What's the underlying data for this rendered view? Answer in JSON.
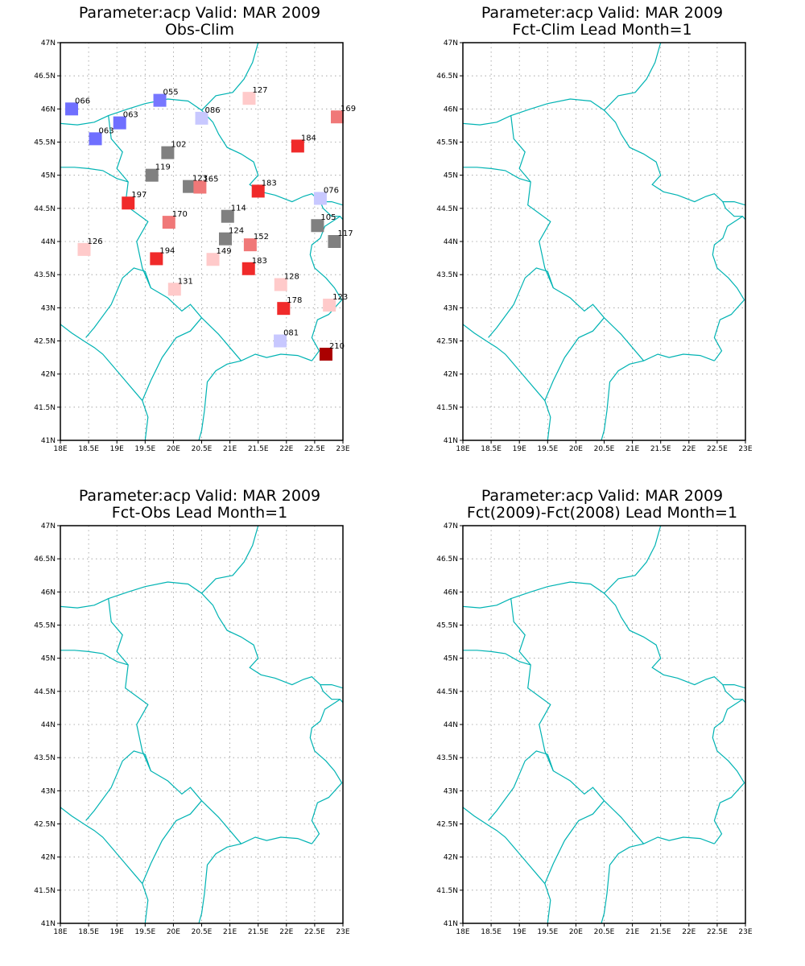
{
  "panels": [
    {
      "title1": "Parameter:acp Valid: MAR 2009",
      "title2": "Obs-Clim",
      "stations": [
        {
          "lon": 18.2,
          "lat": 46.0,
          "label": "066",
          "color": "#6f6fff"
        },
        {
          "lon": 19.76,
          "lat": 46.13,
          "label": "055",
          "color": "#7777ff"
        },
        {
          "lon": 20.5,
          "lat": 45.86,
          "label": "086",
          "color": "#c8c8ff"
        },
        {
          "lon": 21.34,
          "lat": 46.16,
          "label": "127",
          "color": "#ffcaca"
        },
        {
          "lon": 22.9,
          "lat": 45.88,
          "label": "169",
          "color": "#f07878"
        },
        {
          "lon": 19.05,
          "lat": 45.79,
          "label": "063",
          "color": "#6f6fff"
        },
        {
          "lon": 18.62,
          "lat": 45.55,
          "label": "063",
          "color": "#6f6fff"
        },
        {
          "lon": 19.9,
          "lat": 45.34,
          "label": "102",
          "color": "#808080"
        },
        {
          "lon": 22.2,
          "lat": 45.44,
          "label": "184",
          "color": "#f02a2a"
        },
        {
          "lon": 19.62,
          "lat": 45.0,
          "label": "119",
          "color": "#808080"
        },
        {
          "lon": 20.28,
          "lat": 44.83,
          "label": "123",
          "color": "#808080"
        },
        {
          "lon": 20.47,
          "lat": 44.82,
          "label": "165",
          "color": "#f07878"
        },
        {
          "lon": 21.5,
          "lat": 44.76,
          "label": "183",
          "color": "#f02a2a"
        },
        {
          "lon": 22.6,
          "lat": 44.65,
          "label": "076",
          "color": "#c8c8ff"
        },
        {
          "lon": 19.2,
          "lat": 44.58,
          "label": "197",
          "color": "#f02a2a"
        },
        {
          "lon": 20.96,
          "lat": 44.38,
          "label": "114",
          "color": "#808080"
        },
        {
          "lon": 19.92,
          "lat": 44.29,
          "label": "170",
          "color": "#f07878"
        },
        {
          "lon": 22.55,
          "lat": 44.24,
          "label": "105",
          "color": "#808080"
        },
        {
          "lon": 20.92,
          "lat": 44.04,
          "label": "124",
          "color": "#808080"
        },
        {
          "lon": 21.36,
          "lat": 43.95,
          "label": "152",
          "color": "#f07878"
        },
        {
          "lon": 22.85,
          "lat": 44.0,
          "label": "117",
          "color": "#808080"
        },
        {
          "lon": 18.42,
          "lat": 43.88,
          "label": "126",
          "color": "#ffcaca"
        },
        {
          "lon": 19.7,
          "lat": 43.74,
          "label": "194",
          "color": "#f02a2a"
        },
        {
          "lon": 20.7,
          "lat": 43.73,
          "label": "149",
          "color": "#ffcaca"
        },
        {
          "lon": 21.33,
          "lat": 43.59,
          "label": "183",
          "color": "#f02a2a"
        },
        {
          "lon": 21.9,
          "lat": 43.35,
          "label": "128",
          "color": "#ffcaca"
        },
        {
          "lon": 20.02,
          "lat": 43.28,
          "label": "131",
          "color": "#ffcaca"
        },
        {
          "lon": 21.95,
          "lat": 42.99,
          "label": "178",
          "color": "#f02a2a"
        },
        {
          "lon": 22.76,
          "lat": 43.04,
          "label": "123",
          "color": "#ffcaca"
        },
        {
          "lon": 21.89,
          "lat": 42.5,
          "label": "081",
          "color": "#c8c8ff"
        },
        {
          "lon": 22.7,
          "lat": 42.3,
          "label": "210",
          "color": "#aa0000"
        }
      ]
    },
    {
      "title1": "Parameter:acp Valid: MAR 2009",
      "title2": "Fct-Clim Lead Month=1",
      "stations": []
    },
    {
      "title1": "Parameter:acp Valid: MAR 2009",
      "title2": "Fct-Obs Lead Month=1",
      "stations": []
    },
    {
      "title1": "Parameter:acp Valid: MAR 2009",
      "title2": "Fct(2009)-Fct(2008) Lead Month=1",
      "stations": []
    }
  ],
  "axes": {
    "lon_min": 18,
    "lon_max": 23,
    "lat_min": 41,
    "lat_max": 47,
    "lon_ticks": [
      "18E",
      "18.5E",
      "19E",
      "19.5E",
      "20E",
      "20.5E",
      "21E",
      "21.5E",
      "22E",
      "22.5E",
      "23E"
    ],
    "lat_ticks": [
      "41N",
      "41.5N",
      "42N",
      "42.5N",
      "43N",
      "43.5N",
      "44N",
      "44.5N",
      "45N",
      "45.5N",
      "46N",
      "46.5N",
      "47N"
    ],
    "grid": "dotted"
  },
  "colors": {
    "border": "#00b3b3",
    "frame": "#000000",
    "grid": "#9a9a9a"
  }
}
